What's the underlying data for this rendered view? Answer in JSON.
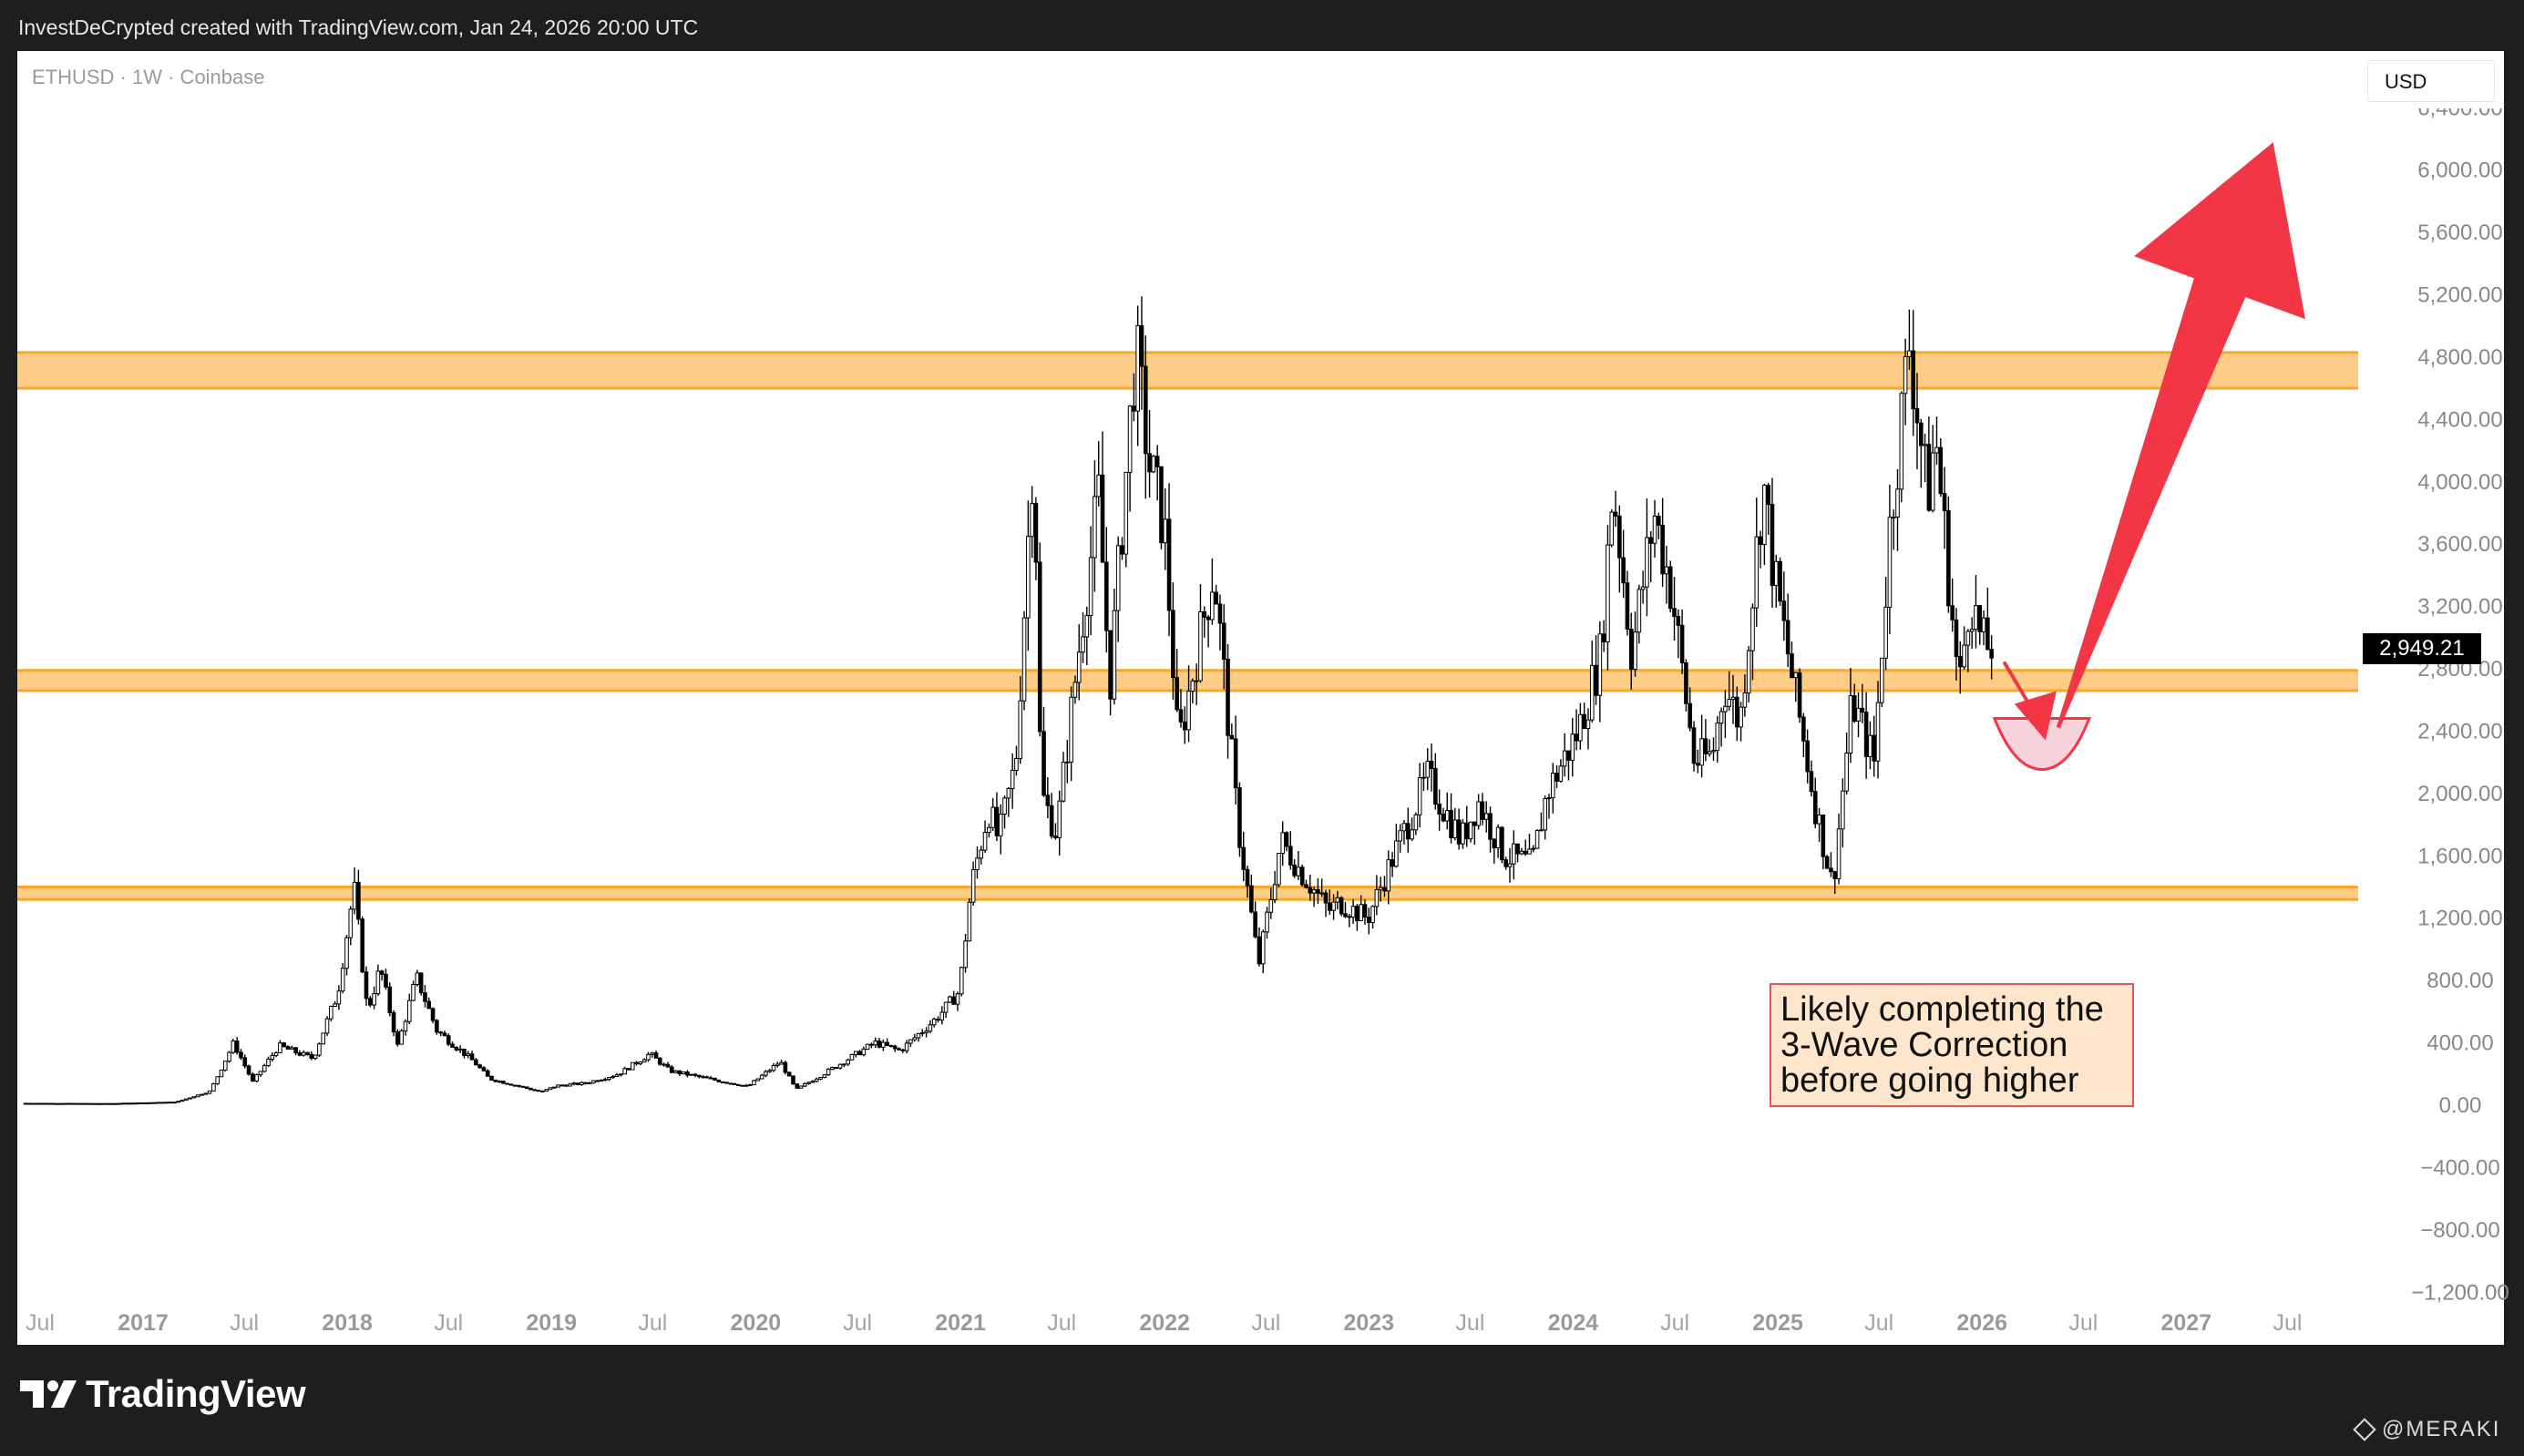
{
  "header": {
    "attribution": "InvestDeCrypted created with TradingView.com, Jan 24, 2026 20:00 UTC"
  },
  "chart": {
    "symbol": "ETHUSD · 1W · Coinbase",
    "currency": "USD",
    "last_price_label": "2,949.21",
    "annotation_lines": [
      "Likely completing the",
      "3-Wave Correction",
      "before going higher"
    ]
  },
  "footer": {
    "brand": "TradingView",
    "watermark": "@MERAKI"
  },
  "colors": {
    "band_fill": "#fdcc86",
    "band_line": "#f7a829",
    "candle": "#000000",
    "arrow": "#f23645",
    "target_fill": "#f9d3dc",
    "axis_text": "#888888",
    "frame": "#1e1e1e"
  },
  "chart_data": {
    "type": "candlestick",
    "title": "ETHUSD · 1W · Coinbase",
    "x_axis": {
      "tick_labels": [
        "Jul",
        "2017",
        "Jul",
        "2018",
        "Jul",
        "2019",
        "Jul",
        "2020",
        "Jul",
        "2021",
        "Jul",
        "2022",
        "Jul",
        "2023",
        "Jul",
        "2024",
        "Jul",
        "2025",
        "Jul",
        "2026",
        "Jul",
        "2027",
        "Jul"
      ],
      "tick_dates": [
        "2016-07-01",
        "2017-01-01",
        "2017-07-01",
        "2018-01-01",
        "2018-07-01",
        "2019-01-01",
        "2019-07-01",
        "2020-01-01",
        "2020-07-01",
        "2021-01-01",
        "2021-07-01",
        "2022-01-01",
        "2022-07-01",
        "2023-01-01",
        "2023-07-01",
        "2024-01-01",
        "2024-07-01",
        "2025-01-01",
        "2025-07-01",
        "2026-01-01",
        "2026-07-01",
        "2027-01-01",
        "2027-07-01"
      ],
      "range": [
        "2016-06-05",
        "2027-09-01"
      ]
    },
    "y_axis": {
      "tick_labels": [
        "6,400.00",
        "6,000.00",
        "5,600.00",
        "5,200.00",
        "4,800.00",
        "4,400.00",
        "4,000.00",
        "3,600.00",
        "3,200.00",
        "2,800.00",
        "2,400.00",
        "2,000.00",
        "1,600.00",
        "1,200.00",
        "800.00",
        "400.00",
        "0.00",
        "−400.00",
        "−800.00",
        "−1,200.00"
      ],
      "range": [
        -1200,
        6400
      ]
    },
    "series": [
      {
        "name": "ETHUSD",
        "type": "price",
        "points": [
          [
            "2016-06-05",
            12
          ],
          [
            "2016-11-01",
            10
          ],
          [
            "2017-03-01",
            20
          ],
          [
            "2017-05-01",
            90
          ],
          [
            "2017-06-12",
            400
          ],
          [
            "2017-07-16",
            150
          ],
          [
            "2017-09-01",
            380
          ],
          [
            "2017-11-01",
            300
          ],
          [
            "2017-12-15",
            720
          ],
          [
            "2018-01-13",
            1400
          ],
          [
            "2018-02-06",
            600
          ],
          [
            "2018-03-01",
            880
          ],
          [
            "2018-04-01",
            380
          ],
          [
            "2018-05-05",
            820
          ],
          [
            "2018-06-10",
            480
          ],
          [
            "2018-08-15",
            280
          ],
          [
            "2018-09-12",
            170
          ],
          [
            "2018-12-14",
            85
          ],
          [
            "2019-01-10",
            125
          ],
          [
            "2019-03-01",
            140
          ],
          [
            "2019-05-01",
            200
          ],
          [
            "2019-06-26",
            330
          ],
          [
            "2019-08-01",
            220
          ],
          [
            "2019-10-01",
            175
          ],
          [
            "2019-12-18",
            120
          ],
          [
            "2020-02-14",
            280
          ],
          [
            "2020-03-13",
            100
          ],
          [
            "2020-05-01",
            200
          ],
          [
            "2020-08-01",
            400
          ],
          [
            "2020-09-15",
            350
          ],
          [
            "2020-11-20",
            560
          ],
          [
            "2020-12-30",
            730
          ],
          [
            "2021-01-20",
            1400
          ],
          [
            "2021-02-20",
            1900
          ],
          [
            "2021-03-10",
            1700
          ],
          [
            "2021-04-10",
            2200
          ],
          [
            "2021-05-12",
            4300
          ],
          [
            "2021-05-25",
            2000
          ],
          [
            "2021-06-22",
            1750
          ],
          [
            "2021-08-10",
            3200
          ],
          [
            "2021-09-05",
            3900
          ],
          [
            "2021-09-25",
            2700
          ],
          [
            "2021-11-10",
            4850
          ],
          [
            "2021-12-05",
            4100
          ],
          [
            "2022-01-01",
            3700
          ],
          [
            "2022-01-25",
            2300
          ],
          [
            "2022-03-30",
            3450
          ],
          [
            "2022-05-12",
            1800
          ],
          [
            "2022-06-18",
            900
          ],
          [
            "2022-07-28",
            1700
          ],
          [
            "2022-09-01",
            1500
          ],
          [
            "2022-10-21",
            1250
          ],
          [
            "2022-11-10",
            1300
          ],
          [
            "2022-12-30",
            1200
          ],
          [
            "2023-02-20",
            1650
          ],
          [
            "2023-04-16",
            2100
          ],
          [
            "2023-06-15",
            1700
          ],
          [
            "2023-07-15",
            1950
          ],
          [
            "2023-09-01",
            1600
          ],
          [
            "2023-10-20",
            1550
          ],
          [
            "2023-11-15",
            2000
          ],
          [
            "2024-01-10",
            2400
          ],
          [
            "2024-02-20",
            2900
          ],
          [
            "2024-03-12",
            4000
          ],
          [
            "2024-04-15",
            2900
          ],
          [
            "2024-05-25",
            3800
          ],
          [
            "2024-06-25",
            3300
          ],
          [
            "2024-08-05",
            2200
          ],
          [
            "2024-09-06",
            2250
          ],
          [
            "2024-09-27",
            2700
          ],
          [
            "2024-10-25",
            2450
          ],
          [
            "2024-12-06",
            4000
          ],
          [
            "2024-12-25",
            3400
          ],
          [
            "2025-02-03",
            2600
          ],
          [
            "2025-03-10",
            1900
          ],
          [
            "2025-04-09",
            1400
          ],
          [
            "2025-05-14",
            2600
          ],
          [
            "2025-06-22",
            2200
          ],
          [
            "2025-07-20",
            3700
          ],
          [
            "2025-08-24",
            4900
          ],
          [
            "2025-09-25",
            3900
          ],
          [
            "2025-10-10",
            4300
          ],
          [
            "2025-11-21",
            2650
          ],
          [
            "2025-12-10",
            3300
          ],
          [
            "2026-01-01",
            2950
          ],
          [
            "2026-01-24",
            2949.21
          ]
        ]
      }
    ],
    "horizontal_bands": [
      [
        4600,
        4830
      ],
      [
        2660,
        2790
      ],
      [
        1320,
        1400
      ]
    ],
    "projection": [
      [
        "2026-01-24",
        2949.21
      ],
      [
        "2026-05-01",
        2400
      ],
      [
        "2027-05-20",
        6050
      ]
    ],
    "annotations": [
      "Likely completing the",
      "3-Wave Correction",
      "before going higher"
    ],
    "last_value": 2949.21,
    "grid": false,
    "legend": "none"
  }
}
